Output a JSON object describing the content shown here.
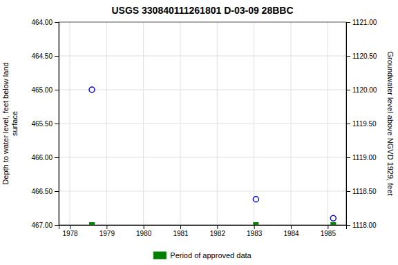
{
  "chart_data": {
    "type": "scatter",
    "title": "USGS 330840111261801 D-03-09 28BBC",
    "ylabel": "Depth to water level, feet below land\nsurface",
    "y2label": "Groundwater level above NGVD 1929, feet",
    "x": [
      1978.6,
      1983.05,
      1985.15
    ],
    "series": [
      {
        "color": "#0000cc",
        "marker": "circle",
        "values": [
          465.0,
          466.62,
          466.9
        ]
      },
      {
        "name": "Period of approved data",
        "color": "#008000",
        "marker": "square",
        "values": [
          467.0,
          467.0,
          467.0
        ]
      }
    ],
    "xlim": [
      1977.7,
      1985.5
    ],
    "xticks": [
      1978,
      1979,
      1980,
      1981,
      1982,
      1983,
      1984,
      1985
    ],
    "ylim": [
      467.0,
      464.0
    ],
    "yticks": [
      {
        "value": 464.0,
        "label": "464.00"
      },
      {
        "value": 464.5,
        "label": "464.50"
      },
      {
        "value": 465.0,
        "label": "465.00"
      },
      {
        "value": 465.5,
        "label": "465.50"
      },
      {
        "value": 466.0,
        "label": "466.00"
      },
      {
        "value": 466.5,
        "label": "466.50"
      },
      {
        "value": 467.0,
        "label": "467.00"
      }
    ],
    "y2lim": [
      1118.0,
      1121.0
    ],
    "y2ticks": [
      {
        "value": 1118.0,
        "label": "1118.00"
      },
      {
        "value": 1118.5,
        "label": "1118.50"
      },
      {
        "value": 1119.0,
        "label": "1119.00"
      },
      {
        "value": 1119.5,
        "label": "1119.50"
      },
      {
        "value": 1120.0,
        "label": "1120.00"
      },
      {
        "value": 1120.5,
        "label": "1120.50"
      },
      {
        "value": 1121.0,
        "label": "1121.00"
      }
    ],
    "grid": true,
    "legend": "bottom"
  }
}
